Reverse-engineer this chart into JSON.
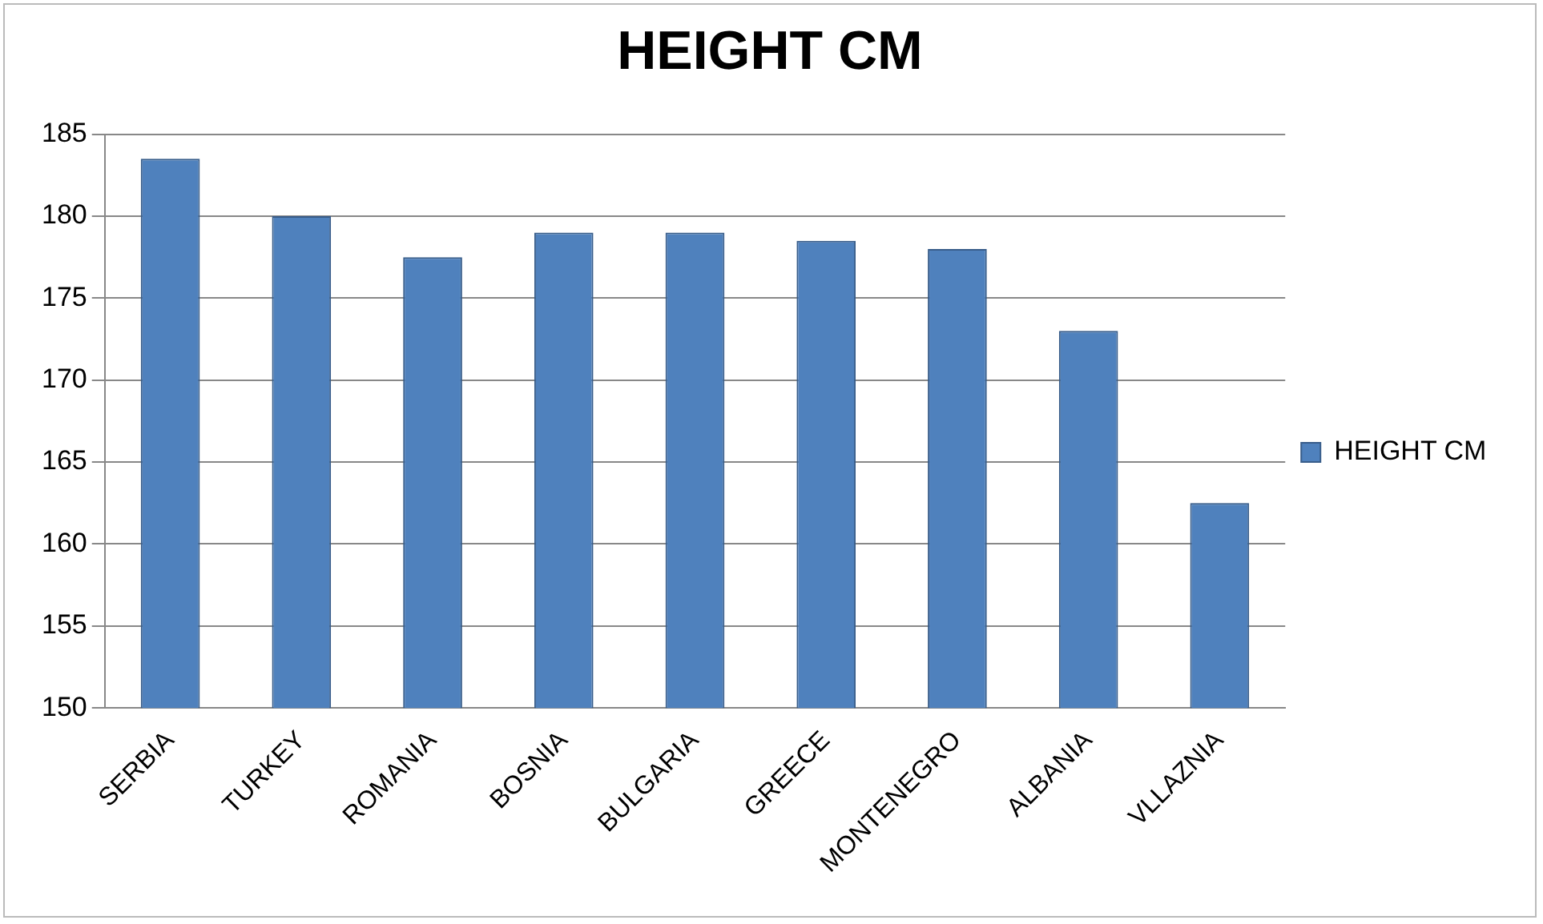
{
  "chart_data": {
    "type": "bar",
    "title": "HEIGHT CM",
    "categories": [
      "SERBIA",
      "TURKEY",
      "ROMANIA",
      "BOSNIA",
      "BULGARIA",
      "GREECE",
      "MONTENEGRO",
      "ALBANIA",
      "VLLAZNIA"
    ],
    "series": [
      {
        "name": "HEIGHT CM",
        "color": "#4f81bd",
        "values": [
          183.5,
          180,
          177.5,
          179,
          179,
          178.5,
          178,
          173,
          162.5
        ]
      }
    ],
    "ylim": [
      150,
      185
    ],
    "yticks": [
      150,
      155,
      160,
      165,
      170,
      175,
      180,
      185
    ],
    "grid": "y",
    "legend": "right"
  }
}
